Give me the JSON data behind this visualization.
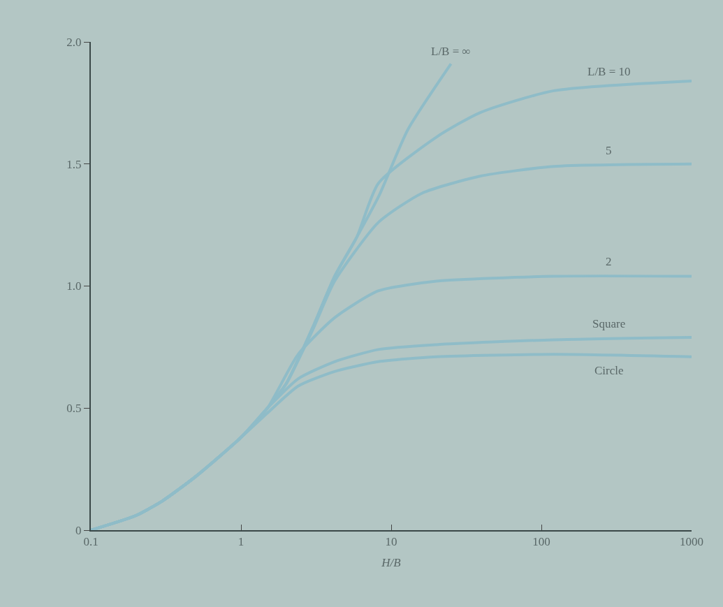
{
  "chart_data": {
    "type": "line",
    "xlabel": "H/B",
    "series": [
      {
        "name": "L/B = ∞",
        "color": "#8fbcc8",
        "x": [
          0.1,
          0.2,
          0.3,
          0.5,
          1,
          1.5,
          2,
          3.0,
          4.2,
          5.9,
          8.3,
          12.9,
          25
        ],
        "values": [
          0,
          0.06,
          0.12,
          0.22,
          0.38,
          0.5,
          0.6,
          0.83,
          1.04,
          1.2,
          1.37,
          1.64,
          1.91
        ]
      },
      {
        "name": "L/B = 10",
        "color": "#8fbcc8",
        "x": [
          0.1,
          0.2,
          0.3,
          0.5,
          1,
          1.5,
          2,
          3.0,
          4.2,
          5.9,
          8.2,
          20,
          39,
          121,
          1000
        ],
        "values": [
          0,
          0.06,
          0.12,
          0.22,
          0.38,
          0.5,
          0.6,
          0.83,
          1.04,
          1.2,
          1.42,
          1.61,
          1.71,
          1.8,
          1.84
        ]
      },
      {
        "name": "5",
        "color": "#8fbcc8",
        "x": [
          0.1,
          0.2,
          0.3,
          0.5,
          1,
          1.5,
          2,
          3.0,
          4.2,
          8.2,
          16,
          39,
          121,
          1000
        ],
        "values": [
          0,
          0.06,
          0.12,
          0.22,
          0.38,
          0.5,
          0.6,
          0.82,
          1.02,
          1.26,
          1.38,
          1.45,
          1.49,
          1.5
        ]
      },
      {
        "name": "2",
        "color": "#8fbcc8",
        "x": [
          0.1,
          0.2,
          0.3,
          0.5,
          1,
          1.5,
          2.4,
          4.2,
          8.2,
          20,
          121,
          1000
        ],
        "values": [
          0,
          0.06,
          0.12,
          0.22,
          0.38,
          0.5,
          0.72,
          0.87,
          0.98,
          1.02,
          1.04,
          1.04
        ]
      },
      {
        "name": "Square",
        "color": "#8fbcc8",
        "x": [
          0.1,
          0.2,
          0.3,
          0.5,
          1,
          1.5,
          2.4,
          4.2,
          8.2,
          20,
          121,
          1000
        ],
        "values": [
          0,
          0.06,
          0.12,
          0.22,
          0.38,
          0.5,
          0.62,
          0.69,
          0.74,
          0.76,
          0.78,
          0.79
        ]
      },
      {
        "name": "Circle",
        "color": "#8fbcc8",
        "x": [
          0.1,
          0.2,
          0.3,
          0.5,
          1,
          1.5,
          2.4,
          4.2,
          8.2,
          20,
          121,
          1000
        ],
        "values": [
          0,
          0.06,
          0.12,
          0.22,
          0.38,
          0.48,
          0.59,
          0.65,
          0.69,
          0.71,
          0.72,
          0.71
        ]
      }
    ],
    "log": "x",
    "xlim": [
      0.1,
      1000
    ],
    "xticks": [
      0.1,
      1,
      10,
      100,
      1000
    ],
    "ylim": [
      0,
      2.0
    ],
    "yticks": [
      0,
      0.5,
      {
        "value": 1.0,
        "label": "1.0"
      },
      1.5,
      {
        "value": 2.0,
        "label": "2.0"
      }
    ],
    "grid": false,
    "legend": false,
    "marker": "none",
    "line_style": "solid"
  }
}
